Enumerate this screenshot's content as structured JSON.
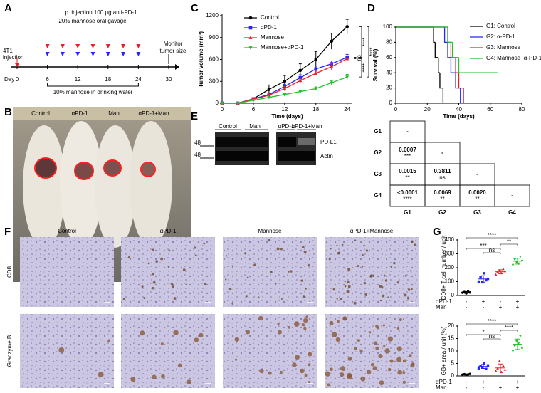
{
  "panel_letters": [
    "A",
    "B",
    "C",
    "D",
    "E",
    "F",
    "G"
  ],
  "timeline": {
    "start_label": [
      "4T1",
      "injection"
    ],
    "day_label": "Day",
    "days": [
      0,
      6,
      12,
      18,
      24,
      30
    ],
    "treatment_days": [
      6,
      9,
      12,
      15,
      18,
      21,
      24
    ],
    "injection_text": "i.p. injection 100 μg  anti-PD-1",
    "gavage_text": "20% mannose oral gavage",
    "water_text": "10% mannose in drinking water",
    "monitor_text": [
      "Monitor",
      "tumor size"
    ]
  },
  "photo": {
    "labels": [
      "Control",
      "αPD-1",
      "Man",
      "αPD-1+Man"
    ]
  },
  "blot": {
    "groups": [
      "Control",
      "Man",
      "αPD-1",
      "αPD-1+Man"
    ],
    "bands": [
      "PD-L1",
      "Actin"
    ],
    "markers": [
      "48",
      "48"
    ]
  },
  "survival_table": {
    "rows": [
      "G1",
      "G2",
      "G3",
      "G4"
    ],
    "columns": [
      "G1",
      "G2",
      "G3",
      "G4"
    ],
    "cells": [
      [
        [
          "-"
        ]
      ],
      [
        [
          "0.0007",
          "***"
        ],
        [
          "-"
        ]
      ],
      [
        [
          "0.0015",
          "**"
        ],
        [
          "0.3811",
          "ns"
        ],
        [
          "-"
        ]
      ],
      [
        [
          "<0.0001",
          "****"
        ],
        [
          "0.0069",
          "**"
        ],
        [
          "0.0020",
          "**"
        ],
        [
          "-"
        ]
      ]
    ]
  },
  "ihc": {
    "columns": [
      "Control",
      "αPD-1",
      "Mannose",
      "αPD-1+Mannose"
    ],
    "rows": [
      "CD8",
      "Granzyme B"
    ]
  },
  "chart_data": [
    {
      "type": "line",
      "xlabel": "Time (days)",
      "ylabel": "Tumor volume (mm³)",
      "x": [
        0,
        3,
        6,
        9,
        12,
        15,
        18,
        21,
        24
      ],
      "xlim": [
        0,
        25
      ],
      "xticks": [
        0,
        6,
        12,
        18,
        24
      ],
      "ylim": [
        0,
        1200
      ],
      "yticks": [
        0,
        300,
        600,
        900,
        1200
      ],
      "series": [
        {
          "name": "Control",
          "color": "#000000",
          "marker": "circle",
          "values": [
            0,
            0,
            60,
            190,
            300,
            450,
            600,
            850,
            1050
          ],
          "errors": [
            0,
            0,
            15,
            60,
            80,
            90,
            110,
            110,
            100
          ]
        },
        {
          "name": "αPD-1",
          "color": "#2424ff",
          "marker": "square",
          "values": [
            0,
            0,
            60,
            120,
            230,
            350,
            470,
            540,
            630
          ],
          "errors": [
            0,
            0,
            10,
            20,
            30,
            40,
            40,
            40,
            40
          ]
        },
        {
          "name": "Mannose",
          "color": "#e8202a",
          "marker": "triangle",
          "values": [
            0,
            0,
            55,
            110,
            200,
            310,
            410,
            500,
            610
          ],
          "errors": [
            0,
            0,
            10,
            20,
            30,
            30,
            30,
            40,
            40
          ]
        },
        {
          "name": "Mannose+αPD-1",
          "color": "#22c02a",
          "marker": "triangle-down",
          "values": [
            0,
            0,
            40,
            80,
            120,
            160,
            200,
            280,
            360
          ],
          "errors": [
            0,
            0,
            8,
            15,
            20,
            20,
            25,
            30,
            35
          ]
        }
      ],
      "significance": [
        "****",
        "ns",
        "****",
        "****"
      ]
    },
    {
      "type": "survival",
      "xlabel": "Time (days)",
      "ylabel": "Survival (%)",
      "xlim": [
        0,
        80
      ],
      "xticks": [
        0,
        20,
        40,
        60,
        80
      ],
      "ylim": [
        0,
        100
      ],
      "yticks": [
        0,
        20,
        40,
        60,
        80,
        100
      ],
      "series": [
        {
          "name": "G1: Control",
          "color": "#000000",
          "x": [
            0,
            24,
            25,
            27,
            28,
            30
          ],
          "values": [
            100,
            80,
            60,
            40,
            20,
            0
          ]
        },
        {
          "name": "G2: α-PD-1",
          "color": "#2424ff",
          "x": [
            0,
            31,
            33,
            35,
            38,
            41
          ],
          "values": [
            100,
            80,
            60,
            40,
            20,
            0
          ]
        },
        {
          "name": "G3: Mannose",
          "color": "#e8202a",
          "x": [
            0,
            33,
            35,
            38,
            40,
            43
          ],
          "values": [
            100,
            80,
            60,
            40,
            20,
            0
          ]
        },
        {
          "name": "G4: Mannose+α-PD-1",
          "color": "#22c02a",
          "x": [
            0,
            33,
            36,
            40,
            65
          ],
          "values": [
            100,
            80,
            60,
            40,
            40
          ]
        }
      ]
    },
    {
      "type": "dot",
      "ylabel": "CD8+ T cell number / unit",
      "ylim": [
        0,
        400
      ],
      "yticks": [
        0,
        100,
        200,
        300,
        400
      ],
      "row_labels": [
        "αPD-1",
        "Man"
      ],
      "rows": [
        [
          "-",
          "+",
          "-",
          "+"
        ],
        [
          "-",
          "-",
          "+",
          "+"
        ]
      ],
      "colors": [
        "#000000",
        "#2424ff",
        "#e8202a",
        "#22c02a"
      ],
      "markers": [
        "circle",
        "square",
        "triangle",
        "triangle-down"
      ],
      "values": [
        [
          20,
          25,
          15,
          30,
          22
        ],
        [
          100,
          130,
          95,
          160,
          110,
          120
        ],
        [
          150,
          170,
          180,
          160,
          190,
          175
        ],
        [
          220,
          260,
          240,
          230,
          280,
          250
        ]
      ],
      "means": [
        22,
        119,
        171,
        247
      ],
      "sds": [
        6,
        23,
        14,
        21
      ],
      "significance": [
        "****",
        "***",
        "ns",
        "**"
      ]
    },
    {
      "type": "dot",
      "ylabel": "GB+ area / unit (%)",
      "ylim": [
        0,
        20
      ],
      "yticks": [
        0,
        5,
        10,
        15,
        20
      ],
      "row_labels": [
        "αPD-1",
        "Man"
      ],
      "rows": [
        [
          "-",
          "+",
          "-",
          "+"
        ],
        [
          "-",
          "-",
          "+",
          "+"
        ]
      ],
      "colors": [
        "#000000",
        "#2424ff",
        "#e8202a",
        "#22c02a"
      ],
      "markers": [
        "circle",
        "square",
        "triangle",
        "triangle-down"
      ],
      "values": [
        [
          0.5,
          0.7,
          0.4,
          0.6,
          0.8
        ],
        [
          3,
          4,
          3.5,
          5,
          2.8,
          4.2
        ],
        [
          2,
          3,
          6,
          1.5,
          4,
          2.5
        ],
        [
          10,
          12,
          14,
          13,
          16,
          11
        ]
      ],
      "means": [
        0.6,
        3.8,
        3.2,
        12.7
      ],
      "sds": [
        0.2,
        0.8,
        1.6,
        2.1
      ],
      "significance": [
        "****",
        "*",
        "ns",
        "****"
      ]
    }
  ]
}
